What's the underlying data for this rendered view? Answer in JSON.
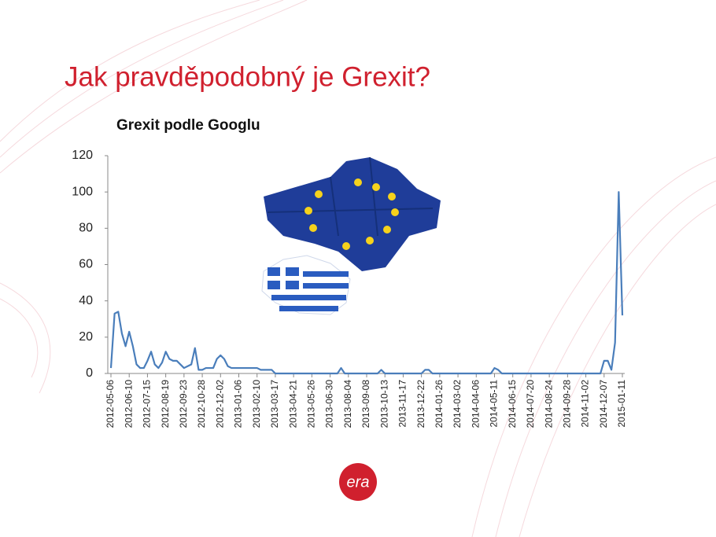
{
  "slide_title": "Jak pravděpodobný je Grexit?",
  "logo": "era",
  "chart_data": {
    "type": "line",
    "title": "Grexit podle Googlu",
    "color": "#4a7ebb",
    "ylim": [
      0,
      120
    ],
    "yticks": [
      0,
      20,
      40,
      60,
      80,
      100,
      120
    ],
    "grid": false,
    "categories": [
      "2012-05-06",
      null,
      null,
      null,
      null,
      "2012-06-10",
      null,
      null,
      null,
      null,
      "2012-07-15",
      null,
      null,
      null,
      null,
      "2012-08-19",
      null,
      null,
      null,
      null,
      "2012-09-23",
      null,
      null,
      null,
      null,
      "2012-10-28",
      null,
      null,
      null,
      null,
      "2012-12-02",
      null,
      null,
      null,
      null,
      "2013-01-06",
      null,
      null,
      null,
      null,
      "2013-02-10",
      null,
      null,
      null,
      null,
      "2013-03-17",
      null,
      null,
      null,
      null,
      "2013-04-21",
      null,
      null,
      null,
      null,
      "2013-05-26",
      null,
      null,
      null,
      null,
      "2013-06-30",
      null,
      null,
      null,
      null,
      "2013-08-04",
      null,
      null,
      null,
      null,
      "2013-09-08",
      null,
      null,
      null,
      null,
      "2013-10-13",
      null,
      null,
      null,
      null,
      "2013-11-17",
      null,
      null,
      null,
      null,
      "2013-12-22",
      null,
      null,
      null,
      null,
      "2014-01-26",
      null,
      null,
      null,
      null,
      "2014-03-02",
      null,
      null,
      null,
      null,
      "2014-04-06",
      null,
      null,
      null,
      null,
      "2014-05-11",
      null,
      null,
      null,
      null,
      "2014-06-15",
      null,
      null,
      null,
      null,
      "2014-07-20",
      null,
      null,
      null,
      null,
      "2014-08-24",
      null,
      null,
      null,
      null,
      "2014-09-28",
      null,
      null,
      null,
      null,
      "2014-11-02",
      null,
      null,
      null,
      null,
      "2014-12-07",
      null,
      null,
      null,
      null,
      "2015-01-11"
    ],
    "values": [
      3,
      33,
      34,
      22,
      15,
      23,
      15,
      5,
      3,
      3,
      7,
      12,
      5,
      3,
      6,
      12,
      8,
      7,
      7,
      5,
      3,
      4,
      5,
      14,
      2,
      2,
      3,
      3,
      3,
      8,
      10,
      8,
      4,
      3,
      3,
      3,
      3,
      3,
      3,
      3,
      3,
      2,
      2,
      2,
      2,
      0,
      0,
      0,
      0,
      0,
      0,
      0,
      0,
      0,
      0,
      0,
      0,
      0,
      0,
      0,
      0,
      0,
      0,
      3,
      0,
      0,
      0,
      0,
      0,
      0,
      0,
      0,
      0,
      0,
      2,
      0,
      0,
      0,
      0,
      0,
      0,
      0,
      0,
      0,
      0,
      0,
      2,
      2,
      0,
      0,
      0,
      0,
      0,
      0,
      0,
      0,
      0,
      0,
      0,
      0,
      0,
      0,
      0,
      0,
      0,
      3,
      2,
      0,
      0,
      0,
      0,
      0,
      0,
      0,
      0,
      0,
      0,
      0,
      0,
      0,
      0,
      0,
      0,
      0,
      0,
      0,
      0,
      0,
      0,
      0,
      0,
      0,
      0,
      0,
      0,
      7,
      7,
      2,
      17,
      100,
      32
    ]
  }
}
